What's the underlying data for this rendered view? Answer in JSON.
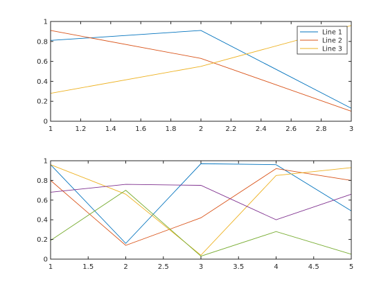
{
  "chart_data": [
    {
      "type": "line",
      "title": "",
      "xlabel": "",
      "ylabel": "",
      "x": [
        1,
        2,
        3
      ],
      "xlim": [
        1,
        3
      ],
      "ylim": [
        0,
        1
      ],
      "xticks": [
        1,
        1.2,
        1.4,
        1.6,
        1.8,
        2,
        2.2,
        2.4,
        2.6,
        2.8,
        3
      ],
      "xtick_labels": [
        "1",
        "1.2",
        "1.4",
        "1.6",
        "1.8",
        "2",
        "2.2",
        "2.4",
        "2.6",
        "2.8",
        "3"
      ],
      "yticks": [
        0,
        0.2,
        0.4,
        0.6,
        0.8,
        1
      ],
      "ytick_labels": [
        "0",
        "0.2",
        "0.4",
        "0.6",
        "0.8",
        "1"
      ],
      "grid": false,
      "legend": "top-right",
      "series": [
        {
          "name": "Line 1",
          "color": "#0072BD",
          "values": [
            0.81,
            0.91,
            0.13
          ]
        },
        {
          "name": "Line 2",
          "color": "#D95319",
          "values": [
            0.91,
            0.63,
            0.1
          ]
        },
        {
          "name": "Line 3",
          "color": "#EDB120",
          "values": [
            0.28,
            0.55,
            0.96
          ]
        }
      ]
    },
    {
      "type": "line",
      "title": "",
      "xlabel": "",
      "ylabel": "",
      "x": [
        1,
        2,
        3,
        4,
        5
      ],
      "xlim": [
        1,
        5
      ],
      "ylim": [
        0,
        1
      ],
      "xticks": [
        1,
        1.5,
        2,
        2.5,
        3,
        3.5,
        4,
        4.5,
        5
      ],
      "xtick_labels": [
        "1",
        "1.5",
        "2",
        "2.5",
        "3",
        "3.5",
        "4",
        "4.5",
        "5"
      ],
      "yticks": [
        0,
        0.2,
        0.4,
        0.6,
        0.8,
        1
      ],
      "ytick_labels": [
        "0",
        "0.2",
        "0.4",
        "0.6",
        "0.8",
        "1"
      ],
      "grid": false,
      "legend": "none",
      "series": [
        {
          "color": "#0072BD",
          "values": [
            0.96,
            0.16,
            0.97,
            0.96,
            0.49
          ]
        },
        {
          "color": "#D95319",
          "values": [
            0.8,
            0.14,
            0.42,
            0.92,
            0.8
          ]
        },
        {
          "color": "#EDB120",
          "values": [
            0.96,
            0.66,
            0.04,
            0.85,
            0.93
          ]
        },
        {
          "color": "#7E2F8E",
          "values": [
            0.68,
            0.76,
            0.75,
            0.4,
            0.66
          ]
        },
        {
          "color": "#77AC30",
          "values": [
            0.19,
            0.7,
            0.03,
            0.28,
            0.05
          ]
        }
      ]
    }
  ]
}
